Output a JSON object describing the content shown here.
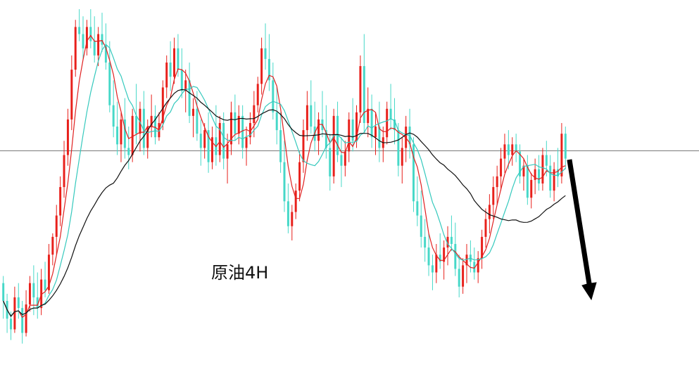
{
  "chart_data": {
    "type": "candlestick",
    "title": "原油4H",
    "xlabel": "",
    "ylabel": "",
    "ylim": [
      0,
      100
    ],
    "grid": false,
    "reference_level": 59.2,
    "arrow_direction": "down",
    "colors": {
      "up": "#e8201b",
      "down": "#46d8c8",
      "reference_line": "#7a7a7a",
      "ma_fast": "#e02020",
      "ma_medium": "#35c9bd",
      "ma_slow": "#111111",
      "arrow": "#000000"
    },
    "candles": [
      [
        22,
        24,
        12,
        17
      ],
      [
        17,
        19,
        8,
        12
      ],
      [
        12,
        14,
        6,
        9
      ],
      [
        9,
        21,
        8,
        18
      ],
      [
        18,
        22,
        12,
        15
      ],
      [
        15,
        17,
        5,
        8
      ],
      [
        8,
        20,
        7,
        16
      ],
      [
        16,
        24,
        14,
        22
      ],
      [
        22,
        27,
        13,
        18
      ],
      [
        18,
        25,
        12,
        15
      ],
      [
        15,
        26,
        13,
        23
      ],
      [
        23,
        28,
        18,
        20
      ],
      [
        20,
        33,
        19,
        30
      ],
      [
        30,
        36,
        27,
        35
      ],
      [
        35,
        44,
        30,
        41
      ],
      [
        41,
        52,
        38,
        49
      ],
      [
        49,
        62,
        46,
        58
      ],
      [
        58,
        71,
        55,
        68
      ],
      [
        68,
        86,
        65,
        82
      ],
      [
        82,
        96,
        80,
        94
      ],
      [
        94,
        99,
        90,
        92
      ],
      [
        92,
        97,
        85,
        88
      ],
      [
        88,
        96,
        86,
        94
      ],
      [
        94,
        99,
        88,
        90
      ],
      [
        90,
        97,
        84,
        86
      ],
      [
        86,
        94,
        83,
        92
      ],
      [
        92,
        98,
        87,
        89
      ],
      [
        89,
        95,
        82,
        84
      ],
      [
        84,
        90,
        70,
        72
      ],
      [
        72,
        79,
        63,
        66
      ],
      [
        66,
        73,
        58,
        61
      ],
      [
        61,
        70,
        56,
        68
      ],
      [
        68,
        74,
        57,
        60
      ],
      [
        60,
        66,
        54,
        58
      ],
      [
        58,
        71,
        56,
        69
      ],
      [
        69,
        78,
        61,
        64
      ],
      [
        64,
        73,
        59,
        71
      ],
      [
        71,
        76,
        58,
        60
      ],
      [
        60,
        68,
        57,
        66
      ],
      [
        66,
        75,
        63,
        69
      ],
      [
        69,
        72,
        61,
        63
      ],
      [
        63,
        70,
        62,
        67
      ],
      [
        67,
        79,
        65,
        77
      ],
      [
        77,
        86,
        74,
        84
      ],
      [
        84,
        90,
        76,
        80
      ],
      [
        80,
        91,
        78,
        88
      ],
      [
        88,
        92,
        80,
        82
      ],
      [
        82,
        88,
        74,
        76
      ],
      [
        76,
        82,
        70,
        79
      ],
      [
        79,
        84,
        67,
        69
      ],
      [
        69,
        74,
        63,
        71
      ],
      [
        71,
        76,
        62,
        64
      ],
      [
        64,
        68,
        55,
        60
      ],
      [
        60,
        67,
        57,
        65
      ],
      [
        65,
        70,
        53,
        56
      ],
      [
        56,
        66,
        54,
        63
      ],
      [
        63,
        72,
        55,
        58
      ],
      [
        58,
        69,
        56,
        67
      ],
      [
        67,
        70,
        54,
        57
      ],
      [
        57,
        64,
        50,
        61
      ],
      [
        61,
        73,
        58,
        70
      ],
      [
        70,
        75,
        62,
        64
      ],
      [
        64,
        72,
        61,
        69
      ],
      [
        69,
        72,
        57,
        60
      ],
      [
        60,
        66,
        55,
        63
      ],
      [
        63,
        70,
        61,
        67
      ],
      [
        67,
        76,
        63,
        72
      ],
      [
        72,
        80,
        70,
        78
      ],
      [
        78,
        91,
        75,
        88
      ],
      [
        88,
        95,
        82,
        85
      ],
      [
        85,
        92,
        76,
        79
      ],
      [
        79,
        84,
        68,
        70
      ],
      [
        70,
        77,
        61,
        65
      ],
      [
        65,
        70,
        53,
        56
      ],
      [
        56,
        62,
        42,
        45
      ],
      [
        45,
        50,
        36,
        38
      ],
      [
        38,
        44,
        34,
        42
      ],
      [
        42,
        50,
        40,
        48
      ],
      [
        48,
        59,
        45,
        56
      ],
      [
        56,
        68,
        53,
        65
      ],
      [
        65,
        76,
        62,
        72
      ],
      [
        72,
        79,
        64,
        66
      ],
      [
        66,
        73,
        59,
        62
      ],
      [
        62,
        70,
        58,
        68
      ],
      [
        68,
        76,
        63,
        65
      ],
      [
        65,
        72,
        57,
        60
      ],
      [
        60,
        64,
        48,
        52
      ],
      [
        52,
        71,
        50,
        69
      ],
      [
        69,
        73,
        56,
        58
      ],
      [
        58,
        63,
        49,
        55
      ],
      [
        55,
        62,
        52,
        59
      ],
      [
        59,
        70,
        56,
        68
      ],
      [
        68,
        74,
        59,
        62
      ],
      [
        62,
        72,
        60,
        70
      ],
      [
        70,
        86,
        67,
        83
      ],
      [
        83,
        92,
        64,
        67
      ],
      [
        67,
        77,
        63,
        71
      ],
      [
        71,
        75,
        60,
        63
      ],
      [
        63,
        70,
        58,
        66
      ],
      [
        66,
        73,
        56,
        60
      ],
      [
        60,
        66,
        56,
        63
      ],
      [
        63,
        73,
        61,
        71
      ],
      [
        71,
        78,
        65,
        68
      ],
      [
        68,
        74,
        61,
        65
      ],
      [
        65,
        67,
        52,
        55
      ],
      [
        55,
        63,
        50,
        60
      ],
      [
        60,
        69,
        56,
        66
      ],
      [
        66,
        71,
        57,
        61
      ],
      [
        61,
        63,
        42,
        45
      ],
      [
        45,
        52,
        38,
        41
      ],
      [
        41,
        48,
        32,
        35
      ],
      [
        35,
        40,
        28,
        32
      ],
      [
        32,
        36,
        24,
        27
      ],
      [
        27,
        30,
        20,
        25
      ],
      [
        25,
        33,
        22,
        30
      ],
      [
        30,
        36,
        26,
        28
      ],
      [
        28,
        34,
        23,
        32
      ],
      [
        32,
        38,
        27,
        35
      ],
      [
        35,
        41,
        31,
        33
      ],
      [
        33,
        39,
        24,
        26
      ],
      [
        26,
        30,
        18,
        21
      ],
      [
        21,
        29,
        19,
        27
      ],
      [
        27,
        33,
        22,
        30
      ],
      [
        30,
        34,
        25,
        28
      ],
      [
        28,
        32,
        23,
        25
      ],
      [
        25,
        31,
        22,
        29
      ],
      [
        29,
        37,
        26,
        35
      ],
      [
        35,
        43,
        32,
        40
      ],
      [
        40,
        47,
        36,
        44
      ],
      [
        44,
        52,
        40,
        49
      ],
      [
        49,
        55,
        44,
        52
      ],
      [
        52,
        60,
        48,
        57
      ],
      [
        57,
        64,
        53,
        61
      ],
      [
        61,
        65,
        54,
        58
      ],
      [
        58,
        63,
        55,
        61
      ],
      [
        61,
        64,
        56,
        59
      ],
      [
        59,
        61,
        50,
        52
      ],
      [
        52,
        57,
        48,
        55
      ],
      [
        55,
        58,
        44,
        46
      ],
      [
        46,
        53,
        43,
        51
      ],
      [
        51,
        57,
        47,
        54
      ],
      [
        54,
        58,
        48,
        50
      ],
      [
        50,
        60,
        48,
        58
      ],
      [
        58,
        62,
        52,
        55
      ],
      [
        55,
        58,
        46,
        48
      ],
      [
        48,
        56,
        45,
        54
      ],
      [
        54,
        60,
        49,
        52
      ],
      [
        52,
        67,
        50,
        64
      ],
      [
        64,
        66,
        54,
        57
      ]
    ],
    "ma_periods": [
      5,
      10,
      30
    ]
  }
}
